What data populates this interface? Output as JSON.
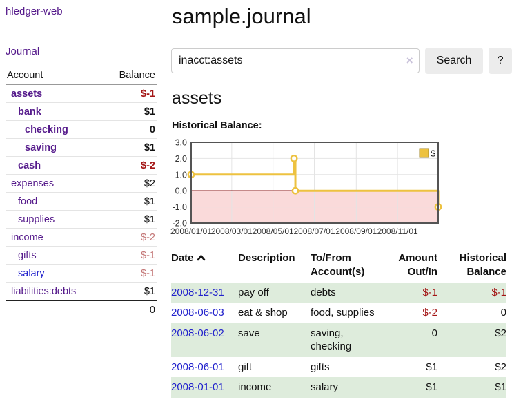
{
  "app": {
    "brand": "hledger-web",
    "nav_journal": "Journal"
  },
  "sidebar": {
    "accounts_header": {
      "account": "Account",
      "balance": "Balance"
    },
    "accounts": [
      {
        "name": "assets",
        "balance": "$-1"
      },
      {
        "name": "bank",
        "balance": "$1"
      },
      {
        "name": "checking",
        "balance": "0"
      },
      {
        "name": "saving",
        "balance": "$1"
      },
      {
        "name": "cash",
        "balance": "$-2"
      },
      {
        "name": "expenses",
        "balance": "$2"
      },
      {
        "name": "food",
        "balance": "$1"
      },
      {
        "name": "supplies",
        "balance": "$1"
      },
      {
        "name": "income",
        "balance": "$-2"
      },
      {
        "name": "gifts",
        "balance": "$-1"
      },
      {
        "name": "salary",
        "balance": "$-1"
      },
      {
        "name": "liabilities:debts",
        "balance": "$1"
      }
    ],
    "total": "0"
  },
  "header": {
    "title": "sample.journal"
  },
  "search": {
    "value": "inacct:assets",
    "clear_label": "×",
    "button_label": "Search",
    "help_label": "?"
  },
  "account_page": {
    "title": "assets",
    "chart_label": "Historical Balance:"
  },
  "chart_data": {
    "type": "line",
    "title": "Historical Balance",
    "step": true,
    "series": [
      {
        "name": "$",
        "color": "#edc240",
        "points": [
          [
            "2008-01-01",
            1
          ],
          [
            "2008-06-01",
            2
          ],
          [
            "2008-06-03",
            0
          ],
          [
            "2008-12-31",
            -1
          ]
        ]
      }
    ],
    "xrange": [
      "2008-01-01",
      "2008-12-31"
    ],
    "ylim": [
      -2,
      3
    ],
    "yticks": [
      "3.0",
      "2.0",
      "1.0",
      "0.0",
      "-1.0",
      "-2.0"
    ],
    "xticks": [
      {
        "date": "2008-01-01",
        "label": "2008/01/01"
      },
      {
        "date": "2008-03-01",
        "label": "2008/03/01"
      },
      {
        "date": "2008-05-01",
        "label": "2008/05/01"
      },
      {
        "date": "2008-07-01",
        "label": "2008/07/01"
      },
      {
        "date": "2008-09-01",
        "label": "2008/09/01"
      },
      {
        "date": "2008-11-01",
        "label": "2008/11/01"
      }
    ],
    "grid": true,
    "legend_position": "top-right",
    "negative_area_color": "#fadada",
    "zero_line_color": "#8b1414",
    "grid_color": "#e4e4e4",
    "border_color": "#545454"
  },
  "register": {
    "columns": {
      "date": "Date",
      "description": "Description",
      "tofrom_line1": "To/From",
      "tofrom_line2": "Account(s)",
      "amount_line1": "Amount",
      "amount_line2": "Out/In",
      "hist_line1": "Historical",
      "hist_line2": "Balance"
    },
    "rows": [
      {
        "date": "2008-12-31",
        "description": "pay off",
        "accounts": "debts",
        "amount": "$-1",
        "balance": "$-1"
      },
      {
        "date": "2008-06-03",
        "description": "eat & shop",
        "accounts": "food, supplies",
        "amount": "$-2",
        "balance": "0"
      },
      {
        "date": "2008-06-02",
        "description": "save",
        "accounts": "saving, checking",
        "amount": "0",
        "balance": "$2"
      },
      {
        "date": "2008-06-01",
        "description": "gift",
        "accounts": "gifts",
        "amount": "$1",
        "balance": "$2"
      },
      {
        "date": "2008-01-01",
        "description": "income",
        "accounts": "salary",
        "amount": "$1",
        "balance": "$1"
      }
    ]
  }
}
